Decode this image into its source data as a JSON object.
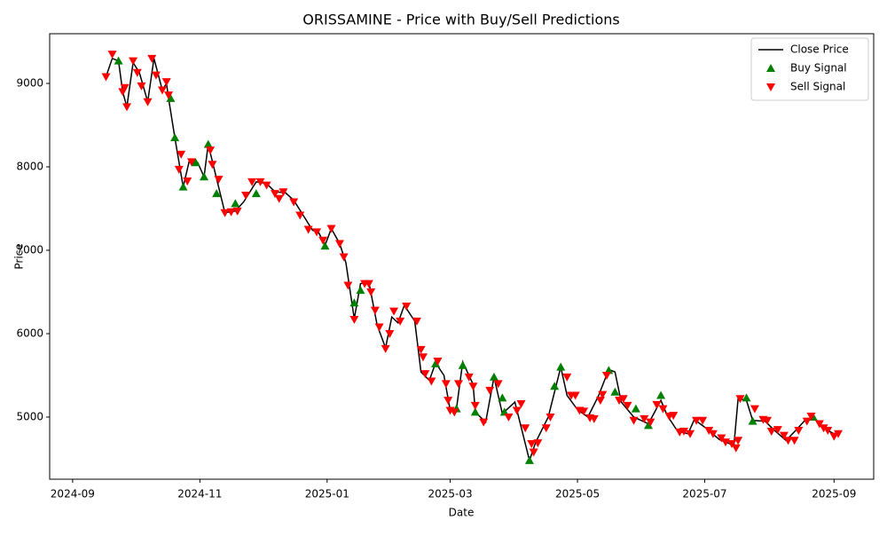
{
  "chart_data": {
    "type": "line",
    "title": "ORISSAMINE - Price with Buy/Sell Predictions",
    "x_label": "Date",
    "y_label": "Price",
    "xlim": [
      "2024-08-21",
      "2025-09-20"
    ],
    "ylim": [
      4255,
      9596
    ],
    "xticks": [
      {
        "value": "2024-09-01",
        "label": "2024-09"
      },
      {
        "value": "2024-11-01",
        "label": "2024-11"
      },
      {
        "value": "2025-01-01",
        "label": "2025-01"
      },
      {
        "value": "2025-03-01",
        "label": "2025-03"
      },
      {
        "value": "2025-05-01",
        "label": "2025-05"
      },
      {
        "value": "2025-07-01",
        "label": "2025-07"
      },
      {
        "value": "2025-09-01",
        "label": "2025-09"
      }
    ],
    "yticks": [
      5000,
      6000,
      7000,
      8000,
      9000
    ],
    "legend": "upper right",
    "series": [
      {
        "name": "Close Price",
        "color": "#000000",
        "kind": "line",
        "x": [
          "2024-09-17",
          "2024-09-20",
          "2024-09-23",
          "2024-09-25",
          "2024-09-27",
          "2024-09-30",
          "2024-10-03",
          "2024-10-07",
          "2024-10-10",
          "2024-10-14",
          "2024-10-16",
          "2024-10-17",
          "2024-10-20",
          "2024-10-24",
          "2024-10-27",
          "2024-10-31",
          "2024-11-03",
          "2024-11-05",
          "2024-11-09",
          "2024-11-13",
          "2024-11-18",
          "2024-11-22",
          "2024-11-28",
          "2024-12-03",
          "2024-12-07",
          "2024-12-12",
          "2024-12-16",
          "2024-12-21",
          "2024-12-25",
          "2024-12-28",
          "2024-12-31",
          "2025-01-03",
          "2025-01-07",
          "2025-01-10",
          "2025-01-14",
          "2025-01-17",
          "2025-01-21",
          "2025-01-25",
          "2025-01-29",
          "2025-02-01",
          "2025-02-04",
          "2025-02-07",
          "2025-02-12",
          "2025-02-15",
          "2025-02-19",
          "2025-02-22",
          "2025-02-26",
          "2025-03-01",
          "2025-03-04",
          "2025-03-07",
          "2025-03-12",
          "2025-03-13",
          "2025-03-18",
          "2025-03-22",
          "2025-03-26",
          "2025-04-01",
          "2025-04-08",
          "2025-04-11",
          "2025-04-17",
          "2025-04-23",
          "2025-04-26",
          "2025-05-01",
          "2025-05-06",
          "2025-05-11",
          "2025-05-16",
          "2025-05-19",
          "2025-05-22",
          "2025-05-28",
          "2025-06-04",
          "2025-06-10",
          "2025-06-13",
          "2025-06-18",
          "2025-06-23",
          "2025-06-26",
          "2025-07-02",
          "2025-07-08",
          "2025-07-15",
          "2025-07-17",
          "2025-07-21",
          "2025-07-24",
          "2025-07-30",
          "2025-08-03",
          "2025-08-09",
          "2025-08-14",
          "2025-08-18",
          "2025-08-22",
          "2025-08-26",
          "2025-09-01",
          "2025-09-03"
        ],
        "values": [
          9080,
          9300,
          9270,
          8900,
          8720,
          9250,
          9130,
          8780,
          9300,
          8920,
          9000,
          8820,
          8350,
          7760,
          8080,
          8050,
          7880,
          8270,
          7860,
          7450,
          7470,
          7580,
          7820,
          7800,
          7700,
          7690,
          7600,
          7400,
          7240,
          7210,
          7060,
          7260,
          7080,
          6850,
          6180,
          6600,
          6620,
          6100,
          5830,
          6200,
          6130,
          6340,
          6150,
          5540,
          5440,
          5650,
          5500,
          5080,
          5100,
          5660,
          5390,
          5060,
          4940,
          5480,
          5040,
          5180,
          4480,
          4700,
          5000,
          5600,
          5260,
          5090,
          5000,
          5250,
          5570,
          5540,
          5180,
          5000,
          4920,
          5200,
          5020,
          4830,
          4800,
          4970,
          4860,
          4730,
          4660,
          5220,
          5200,
          4960,
          4950,
          4850,
          4720,
          4850,
          4960,
          5000,
          4880,
          4800,
          4810
        ]
      },
      {
        "name": "Buy Signal",
        "color": "#008000",
        "kind": "buy",
        "x": [
          "2024-09-23",
          "2024-10-18",
          "2024-10-20",
          "2024-10-24",
          "2024-10-30",
          "2024-11-03",
          "2024-11-05",
          "2024-11-09",
          "2024-11-18",
          "2024-11-28",
          "2024-12-31",
          "2025-01-14",
          "2025-01-17",
          "2025-02-22",
          "2025-03-04",
          "2025-03-07",
          "2025-03-13",
          "2025-03-22",
          "2025-03-26",
          "2025-03-27",
          "2025-04-08",
          "2025-04-20",
          "2025-04-23",
          "2025-05-16",
          "2025-05-19",
          "2025-05-29",
          "2025-06-04",
          "2025-06-10",
          "2025-07-21",
          "2025-07-24",
          "2025-08-22"
        ],
        "values": [
          9270,
          8820,
          8350,
          7760,
          8050,
          7880,
          8270,
          7680,
          7560,
          7680,
          7050,
          6370,
          6520,
          5640,
          5100,
          5620,
          5060,
          5480,
          5230,
          5060,
          4480,
          5370,
          5600,
          5560,
          5300,
          5100,
          4900,
          5260,
          5230,
          4950,
          5000
        ]
      },
      {
        "name": "Sell Signal",
        "color": "#ff0000",
        "kind": "sell",
        "x": [
          "2024-09-17",
          "2024-09-20",
          "2024-09-25",
          "2024-09-26",
          "2024-09-27",
          "2024-09-30",
          "2024-10-02",
          "2024-10-04",
          "2024-10-07",
          "2024-10-09",
          "2024-10-11",
          "2024-10-14",
          "2024-10-16",
          "2024-10-17",
          "2024-10-22",
          "2024-10-23",
          "2024-10-26",
          "2024-10-28",
          "2024-11-06",
          "2024-11-07",
          "2024-11-10",
          "2024-11-13",
          "2024-11-16",
          "2024-11-19",
          "2024-11-23",
          "2024-11-26",
          "2024-11-30",
          "2024-12-03",
          "2024-12-07",
          "2024-12-09",
          "2024-12-11",
          "2024-12-16",
          "2024-12-19",
          "2024-12-23",
          "2024-12-27",
          "2024-12-30",
          "2025-01-03",
          "2025-01-07",
          "2025-01-09",
          "2025-01-11",
          "2025-01-14",
          "2025-01-19",
          "2025-01-21",
          "2025-01-22",
          "2025-01-24",
          "2025-01-26",
          "2025-01-29",
          "2025-01-31",
          "2025-02-02",
          "2025-02-05",
          "2025-02-08",
          "2025-02-13",
          "2025-02-15",
          "2025-02-16",
          "2025-02-17",
          "2025-02-20",
          "2025-02-23",
          "2025-02-27",
          "2025-02-28",
          "2025-03-01",
          "2025-03-03",
          "2025-03-05",
          "2025-03-10",
          "2025-03-12",
          "2025-03-13",
          "2025-03-17",
          "2025-03-20",
          "2025-03-24",
          "2025-03-29",
          "2025-04-02",
          "2025-04-04",
          "2025-04-06",
          "2025-04-09",
          "2025-04-10",
          "2025-04-12",
          "2025-04-16",
          "2025-04-18",
          "2025-04-26",
          "2025-04-28",
          "2025-04-30",
          "2025-05-02",
          "2025-05-04",
          "2025-05-07",
          "2025-05-09",
          "2025-05-12",
          "2025-05-13",
          "2025-05-15",
          "2025-05-21",
          "2025-05-23",
          "2025-05-25",
          "2025-05-28",
          "2025-06-02",
          "2025-06-05",
          "2025-06-08",
          "2025-06-11",
          "2025-06-14",
          "2025-06-16",
          "2025-06-19",
          "2025-06-21",
          "2025-06-24",
          "2025-06-27",
          "2025-06-30",
          "2025-07-03",
          "2025-07-05",
          "2025-07-09",
          "2025-07-11",
          "2025-07-14",
          "2025-07-16",
          "2025-07-17",
          "2025-07-18",
          "2025-07-25",
          "2025-07-29",
          "2025-07-31",
          "2025-08-02",
          "2025-08-05",
          "2025-08-08",
          "2025-08-10",
          "2025-08-13",
          "2025-08-15",
          "2025-08-19",
          "2025-08-21",
          "2025-08-25",
          "2025-08-27",
          "2025-08-29",
          "2025-09-01",
          "2025-09-03"
        ],
        "values": [
          9080,
          9350,
          8900,
          8950,
          8720,
          9270,
          9130,
          8970,
          8780,
          9300,
          9100,
          8920,
          9020,
          8860,
          7970,
          8150,
          7830,
          8060,
          8200,
          8030,
          7850,
          7450,
          7460,
          7470,
          7660,
          7820,
          7820,
          7780,
          7680,
          7620,
          7700,
          7580,
          7420,
          7250,
          7220,
          7120,
          7260,
          7080,
          6920,
          6580,
          6170,
          6600,
          6600,
          6500,
          6280,
          6080,
          5820,
          6000,
          6270,
          6150,
          6330,
          6150,
          5810,
          5720,
          5520,
          5430,
          5670,
          5400,
          5200,
          5080,
          5060,
          5400,
          5480,
          5370,
          5140,
          4940,
          5320,
          5400,
          5000,
          5080,
          5160,
          4870,
          4680,
          4580,
          4690,
          4870,
          5000,
          5480,
          5260,
          5260,
          5080,
          5070,
          4990,
          4980,
          5200,
          5270,
          5500,
          5200,
          5220,
          5140,
          4960,
          4980,
          4940,
          5150,
          5100,
          5010,
          5020,
          4820,
          4830,
          4800,
          4960,
          4960,
          4840,
          4800,
          4750,
          4700,
          4680,
          4630,
          4720,
          5220,
          5100,
          4970,
          4960,
          4830,
          4850,
          4780,
          4720,
          4720,
          4840,
          4950,
          5010,
          4920,
          4870,
          4840,
          4770,
          4800
        ]
      }
    ]
  }
}
